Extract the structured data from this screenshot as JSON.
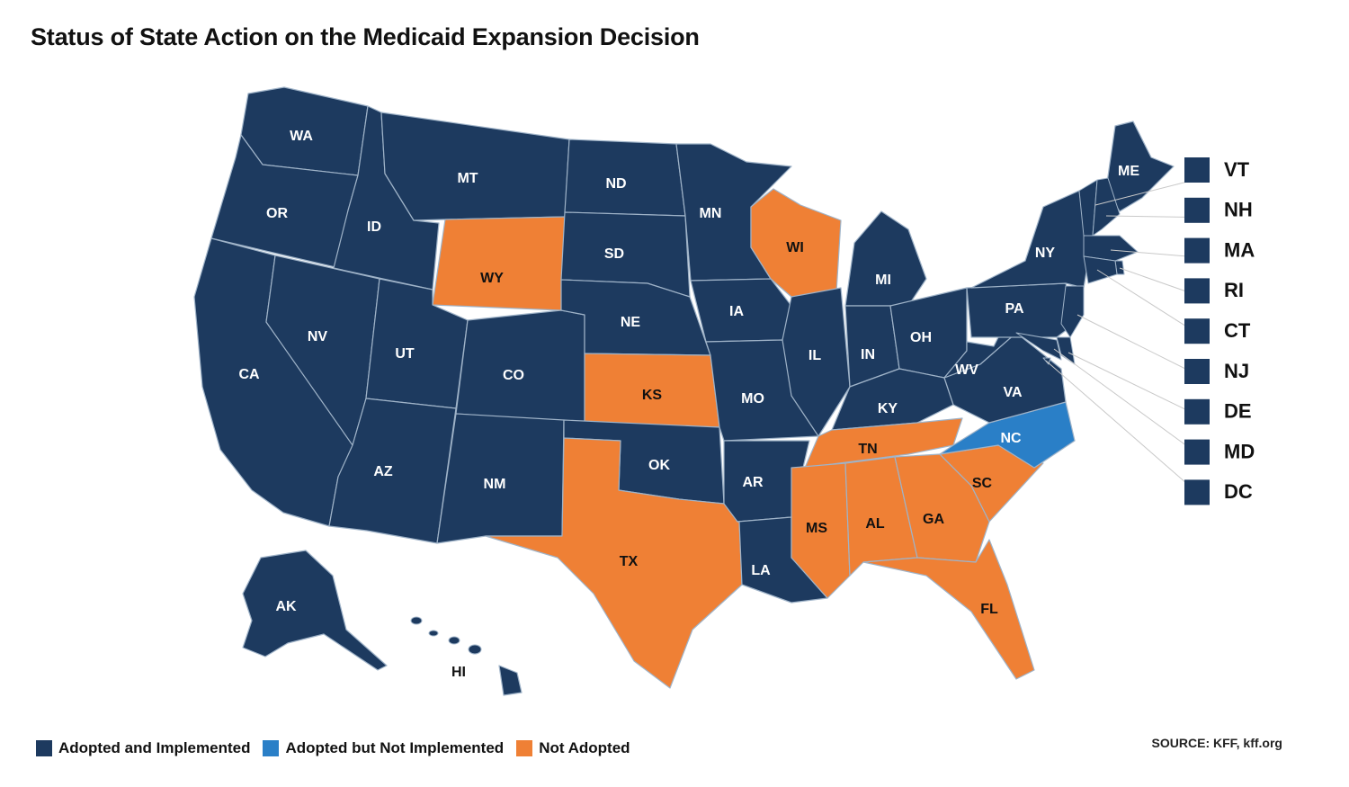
{
  "title": "Status of State Action on the Medicaid Expansion Decision",
  "colors": {
    "adopted": "#1d3a5f",
    "not_implemented": "#2a7fc7",
    "not_adopted": "#ef8035",
    "border": "#9fb3c8",
    "callout_line": "#c9c9c9"
  },
  "legend": [
    {
      "label": "Adopted and Implemented",
      "status": "adopted"
    },
    {
      "label": "Adopted but Not Implemented",
      "status": "not_implemented"
    },
    {
      "label": "Not Adopted",
      "status": "not_adopted"
    }
  ],
  "source": "SOURCE: KFF, kff.org",
  "states": [
    {
      "abbr": "WA",
      "status": "adopted"
    },
    {
      "abbr": "OR",
      "status": "adopted"
    },
    {
      "abbr": "CA",
      "status": "adopted"
    },
    {
      "abbr": "ID",
      "status": "adopted"
    },
    {
      "abbr": "NV",
      "status": "adopted"
    },
    {
      "abbr": "MT",
      "status": "adopted"
    },
    {
      "abbr": "WY",
      "status": "not_adopted"
    },
    {
      "abbr": "UT",
      "status": "adopted"
    },
    {
      "abbr": "AZ",
      "status": "adopted"
    },
    {
      "abbr": "CO",
      "status": "adopted"
    },
    {
      "abbr": "NM",
      "status": "adopted"
    },
    {
      "abbr": "ND",
      "status": "adopted"
    },
    {
      "abbr": "SD",
      "status": "adopted"
    },
    {
      "abbr": "NE",
      "status": "adopted"
    },
    {
      "abbr": "KS",
      "status": "not_adopted"
    },
    {
      "abbr": "OK",
      "status": "adopted"
    },
    {
      "abbr": "TX",
      "status": "not_adopted"
    },
    {
      "abbr": "MN",
      "status": "adopted"
    },
    {
      "abbr": "IA",
      "status": "adopted"
    },
    {
      "abbr": "MO",
      "status": "adopted"
    },
    {
      "abbr": "AR",
      "status": "adopted"
    },
    {
      "abbr": "LA",
      "status": "adopted"
    },
    {
      "abbr": "WI",
      "status": "not_adopted"
    },
    {
      "abbr": "IL",
      "status": "adopted"
    },
    {
      "abbr": "MI",
      "status": "adopted"
    },
    {
      "abbr": "IN",
      "status": "adopted"
    },
    {
      "abbr": "OH",
      "status": "adopted"
    },
    {
      "abbr": "KY",
      "status": "adopted"
    },
    {
      "abbr": "TN",
      "status": "not_adopted"
    },
    {
      "abbr": "MS",
      "status": "not_adopted"
    },
    {
      "abbr": "AL",
      "status": "not_adopted"
    },
    {
      "abbr": "GA",
      "status": "not_adopted"
    },
    {
      "abbr": "FL",
      "status": "not_adopted"
    },
    {
      "abbr": "SC",
      "status": "not_adopted"
    },
    {
      "abbr": "NC",
      "status": "not_implemented"
    },
    {
      "abbr": "VA",
      "status": "adopted"
    },
    {
      "abbr": "WV",
      "status": "adopted"
    },
    {
      "abbr": "PA",
      "status": "adopted"
    },
    {
      "abbr": "NY",
      "status": "adopted"
    },
    {
      "abbr": "ME",
      "status": "adopted"
    },
    {
      "abbr": "AK",
      "status": "adopted"
    },
    {
      "abbr": "HI",
      "status": "adopted"
    }
  ],
  "small_states": [
    {
      "abbr": "VT",
      "status": "adopted"
    },
    {
      "abbr": "NH",
      "status": "adopted"
    },
    {
      "abbr": "MA",
      "status": "adopted"
    },
    {
      "abbr": "RI",
      "status": "adopted"
    },
    {
      "abbr": "CT",
      "status": "adopted"
    },
    {
      "abbr": "NJ",
      "status": "adopted"
    },
    {
      "abbr": "DE",
      "status": "adopted"
    },
    {
      "abbr": "MD",
      "status": "adopted"
    },
    {
      "abbr": "DC",
      "status": "adopted"
    }
  ]
}
